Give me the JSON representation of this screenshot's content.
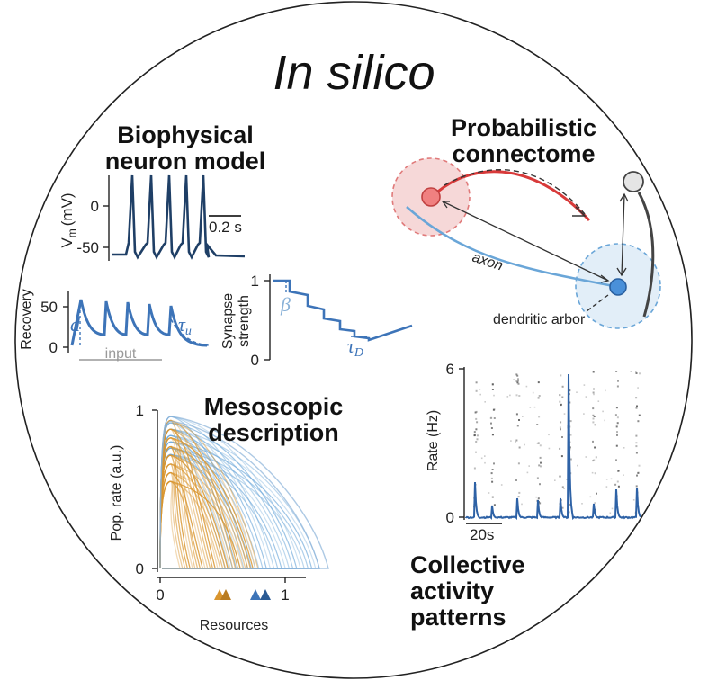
{
  "title": "In silico",
  "sections": {
    "biophysical": "Biophysical neuron model",
    "connectome": "Probabilistic connectome",
    "mesoscopic": "Mesoscopic description",
    "collective": "Collective activity patterns"
  },
  "voltage_panel": {
    "ylabel": "V",
    "ylabel_sub": "m",
    "ylabel_unit": "(mV)",
    "ticks": [
      "0",
      "-50"
    ],
    "scalebar": "0.2 s"
  },
  "recovery_panel": {
    "ylabel": "Recovery",
    "ticks": [
      "50",
      "0"
    ],
    "symbol_d": "d",
    "symbol_tau": "τ",
    "symbol_tau_sub": "u",
    "input_label": "input"
  },
  "synapse_panel": {
    "ylabel_line1": "Synapse",
    "ylabel_line2": "strength",
    "ticks": [
      "1",
      "0"
    ],
    "symbol_beta": "β",
    "symbol_tau": "τ",
    "symbol_tau_sub": "D"
  },
  "connectome_panel": {
    "axon_label": "axon",
    "dendrite_label": "dendritic arbor"
  },
  "mesoscopic_panel": {
    "ylabel": "Pop. rate (a.u.)",
    "xlabel": "Resources",
    "yticks": [
      "1",
      "0"
    ],
    "xticks": [
      "0",
      "1"
    ]
  },
  "raster_panel": {
    "ylabel": "Rate (Hz)",
    "yticks": [
      "6",
      "0"
    ],
    "scalebar": "20s"
  },
  "colors": {
    "dark_blue": "#1f3f66",
    "blue": "#3d74b8",
    "light_blue": "#6aa6d8",
    "orange": "#d9952e",
    "red": "#d83a3a"
  }
}
